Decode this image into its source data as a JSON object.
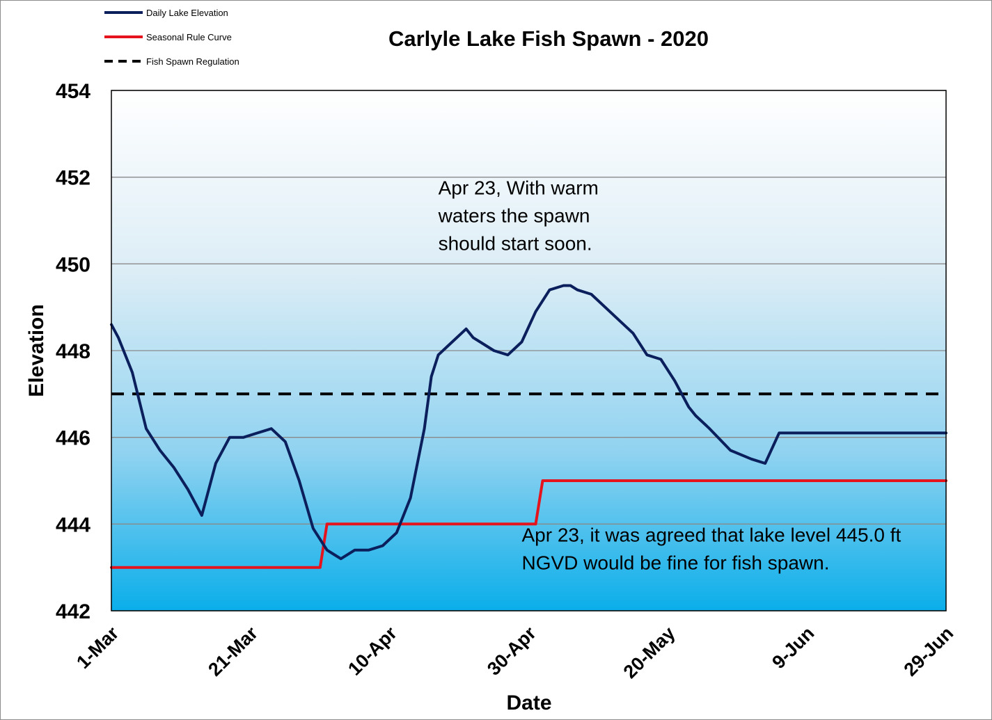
{
  "chart_data": {
    "type": "line",
    "title": "Carlyle Lake Fish Spawn - 2020",
    "xlabel": "Date",
    "ylabel": "Elevation",
    "ylim": [
      442,
      454
    ],
    "yticks": [
      442,
      444,
      446,
      448,
      450,
      452,
      454
    ],
    "xlim": [
      "2020-03-01",
      "2020-06-29"
    ],
    "xticks": [
      "2020-03-01",
      "2020-03-21",
      "2020-04-10",
      "2020-04-30",
      "2020-05-20",
      "2020-06-09",
      "2020-06-29"
    ],
    "xtick_labels": [
      "1-Mar",
      "21-Mar",
      "10-Apr",
      "30-Apr",
      "20-May",
      "9-Jun",
      "29-Jun"
    ],
    "grid": true,
    "legend_position": "top-left",
    "series": [
      {
        "name": "Daily Lake Elevation",
        "color": "#0b1f5c",
        "style": "solid",
        "x": [
          "2020-03-01",
          "2020-03-02",
          "2020-03-04",
          "2020-03-06",
          "2020-03-08",
          "2020-03-10",
          "2020-03-12",
          "2020-03-14",
          "2020-03-16",
          "2020-03-18",
          "2020-03-19",
          "2020-03-20",
          "2020-03-22",
          "2020-03-24",
          "2020-03-26",
          "2020-03-28",
          "2020-03-30",
          "2020-04-01",
          "2020-04-02",
          "2020-04-03",
          "2020-04-05",
          "2020-04-07",
          "2020-04-09",
          "2020-04-11",
          "2020-04-13",
          "2020-04-15",
          "2020-04-16",
          "2020-04-17",
          "2020-04-19",
          "2020-04-21",
          "2020-04-22",
          "2020-04-23",
          "2020-04-25",
          "2020-04-27",
          "2020-04-29",
          "2020-05-01",
          "2020-05-03",
          "2020-05-05",
          "2020-05-06",
          "2020-05-07",
          "2020-05-09",
          "2020-05-11",
          "2020-05-13",
          "2020-05-15",
          "2020-05-17",
          "2020-05-19",
          "2020-05-21",
          "2020-05-23",
          "2020-05-24",
          "2020-05-26",
          "2020-05-29",
          "2020-06-01",
          "2020-06-03",
          "2020-06-05",
          "2020-06-06",
          "2020-06-07",
          "2020-06-09",
          "2020-06-11",
          "2020-06-13",
          "2020-06-15",
          "2020-06-17",
          "2020-06-19",
          "2020-06-20",
          "2020-06-22",
          "2020-06-24",
          "2020-06-26",
          "2020-06-28",
          "2020-06-29"
        ],
        "values": [
          448.6,
          448.3,
          447.5,
          446.2,
          445.7,
          445.3,
          444.8,
          444.2,
          445.4,
          446.0,
          446.0,
          446.0,
          446.1,
          446.2,
          445.9,
          445.0,
          443.9,
          443.4,
          443.3,
          443.2,
          443.4,
          443.4,
          443.5,
          443.8,
          444.6,
          446.2,
          447.4,
          447.9,
          448.2,
          448.5,
          448.3,
          448.2,
          448.0,
          447.9,
          448.2,
          448.9,
          449.4,
          449.5,
          449.5,
          449.4,
          449.3,
          449.0,
          448.7,
          448.4,
          447.9,
          447.8,
          447.3,
          446.7,
          446.5,
          446.2,
          445.7,
          445.5,
          445.4,
          446.1,
          446.1,
          446.1,
          446.1,
          446.1,
          446.1,
          446.1,
          446.1,
          446.1,
          446.1,
          446.1,
          446.1,
          446.1,
          446.1,
          446.1
        ]
      },
      {
        "name": "Seasonal Rule Curve",
        "color": "#e5141c",
        "style": "solid",
        "x": [
          "2020-03-01",
          "2020-03-30",
          "2020-03-31",
          "2020-04-01",
          "2020-04-30",
          "2020-05-01",
          "2020-05-02",
          "2020-06-29"
        ],
        "values": [
          443.0,
          443.0,
          443.0,
          444.0,
          444.0,
          444.0,
          445.0,
          445.0
        ]
      },
      {
        "name": "Fish Spawn Regulation",
        "color": "#000000",
        "style": "dashed",
        "x": [
          "2020-03-01",
          "2020-06-29"
        ],
        "values": [
          447.0,
          447.0
        ]
      }
    ],
    "annotations": [
      {
        "text_lines": [
          "Apr 23, With warm",
          "waters the spawn",
          "should start soon."
        ],
        "x": "2020-04-17",
        "y": 451.6
      },
      {
        "text_lines": [
          "Apr 23, it was agreed that lake level 445.0 ft",
          "NGVD would be fine for fish spawn."
        ],
        "x": "2020-04-29",
        "y": 443.6
      }
    ]
  }
}
